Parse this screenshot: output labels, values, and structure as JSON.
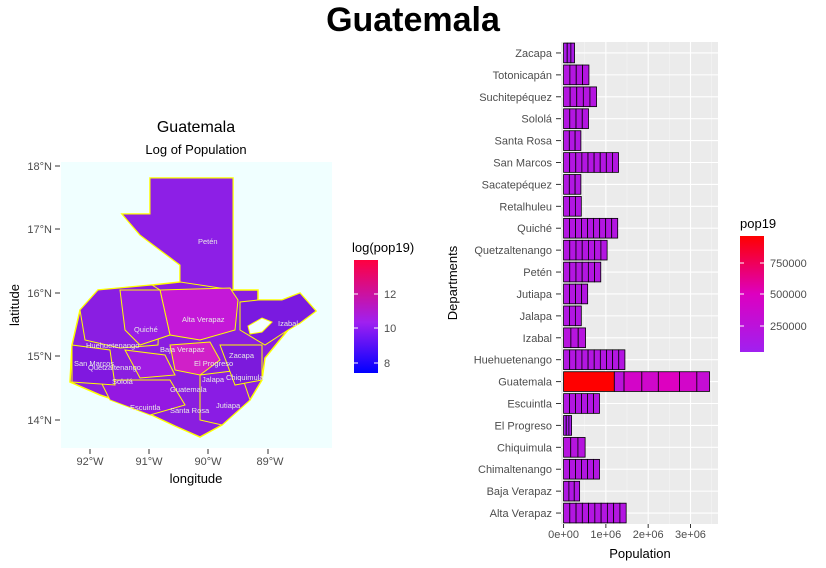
{
  "page_title": "Guatemala",
  "chart_data": [
    {
      "type": "map",
      "title": "Guatemala",
      "subtitle": "Log of Population",
      "xlabel": "longitude",
      "ylabel": "latitude",
      "x_ticks": [
        "92°W",
        "91°W",
        "90°W",
        "89°W"
      ],
      "y_ticks": [
        "14°N",
        "15°N",
        "16°N",
        "17°N",
        "18°N"
      ],
      "xlim": [
        -92.5,
        -88.2
      ],
      "ylim": [
        13.5,
        18.2
      ],
      "legend": {
        "title": "log(pop19)",
        "position": "right",
        "ticks": [
          8,
          10,
          12
        ],
        "range": [
          7.3,
          13.8
        ],
        "colors": [
          "#0000ff",
          "#a020f0",
          "#ff0040"
        ]
      },
      "panel_background": "#f0ffff",
      "border_color": "#ffff00",
      "region_labels": [
        "Petén",
        "Alta Verapaz",
        "Izabal",
        "Quiché",
        "Huehuetenango",
        "Baja Verapaz",
        "Zacapa",
        "El Progreso",
        "Jalapa",
        "Chiquimula",
        "San Marcos",
        "Quetzaltenango",
        "Escuintla",
        "Santa Rosa",
        "Jutiapa",
        "Sololá",
        "Guatemala"
      ]
    },
    {
      "type": "bar",
      "orientation": "horizontal",
      "xlabel": "Population",
      "ylabel": "Departments",
      "x_ticks": [
        "0e+00",
        "1e+06",
        "2e+06",
        "3e+06"
      ],
      "xlim": [
        -60000,
        3650000
      ],
      "categories": [
        "Alta Verapaz",
        "Baja Verapaz",
        "Chimaltenango",
        "Chiquimula",
        "El Progreso",
        "Escuintla",
        "Guatemala",
        "Huehuetenango",
        "Izabal",
        "Jalapa",
        "Jutiapa",
        "Petén",
        "Quetzaltenango",
        "Quiché",
        "Retalhuleu",
        "Sacatepéquez",
        "San Marcos",
        "Santa Rosa",
        "Sololá",
        "Suchitepéquez",
        "Totonicapán",
        "Zacapa"
      ],
      "values": [
        1480000,
        380000,
        850000,
        510000,
        190000,
        850000,
        3450000,
        1450000,
        520000,
        420000,
        570000,
        880000,
        1030000,
        1280000,
        420000,
        410000,
        1300000,
        410000,
        590000,
        780000,
        600000,
        260000
      ],
      "bar_fill_note": "each bar is stacked from municipal segments with black outlines",
      "legend": {
        "title": "pop19",
        "position": "right",
        "ticks": [
          "250000",
          "500000",
          "750000"
        ],
        "range": [
          5000,
          1000000
        ],
        "colors": [
          "#a020f0",
          "#dd00c0",
          "#ff0000"
        ]
      },
      "panel_background": "#ebebeb",
      "grid": true
    }
  ]
}
